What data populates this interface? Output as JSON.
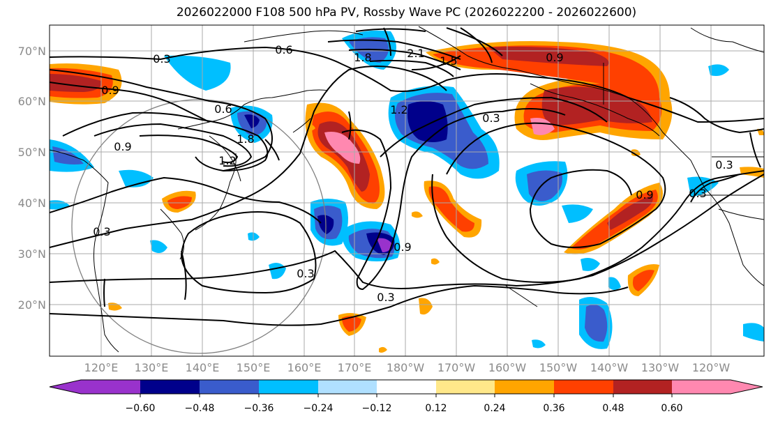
{
  "title": "2026022000 F108 500 hPa PV, Rossby Wave PC (2026022200 - 2026022600)",
  "lat_labels": [
    "70°N",
    "60°N",
    "50°N",
    "40°N",
    "30°N",
    "20°N"
  ],
  "lon_labels": [
    "120°E",
    "130°E",
    "140°E",
    "150°E",
    "160°E",
    "170°E",
    "180°W",
    "170°W",
    "160°W",
    "150°W",
    "140°W",
    "130°W",
    "120°W"
  ],
  "contour_labels": [
    "0.3",
    "0.6",
    "0.9",
    "0.9",
    "0.6",
    "1.2",
    "1.8",
    "1.2",
    "1.5",
    "2.1",
    "1.8",
    "0.3",
    "0.9",
    "0.9",
    "0.3",
    "0.3",
    "0.3",
    "0.3",
    "0.3",
    "0.9"
  ],
  "colorbar": {
    "ticks": [
      "−0.60",
      "−0.48",
      "−0.36",
      "−0.24",
      "−0.12",
      "0.12",
      "0.24",
      "0.36",
      "0.48",
      "0.60"
    ],
    "colors": [
      "#9932cc",
      "#00008b",
      "#3a5ccc",
      "#00bfff",
      "#b0e0ff",
      "#ffffff",
      "#ffe88a",
      "#ffa500",
      "#ff4000",
      "#b22222",
      "#ff88b0"
    ]
  },
  "colors": {
    "n060": "#9932cc",
    "n048": "#00008b",
    "n036": "#3a5ccc",
    "n024": "#00bfff",
    "n012": "#b0e0ff",
    "p012": "#ffe88a",
    "p024": "#ffa500",
    "p036": "#ff4000",
    "p048": "#b22222",
    "p060": "#ff88b0"
  }
}
